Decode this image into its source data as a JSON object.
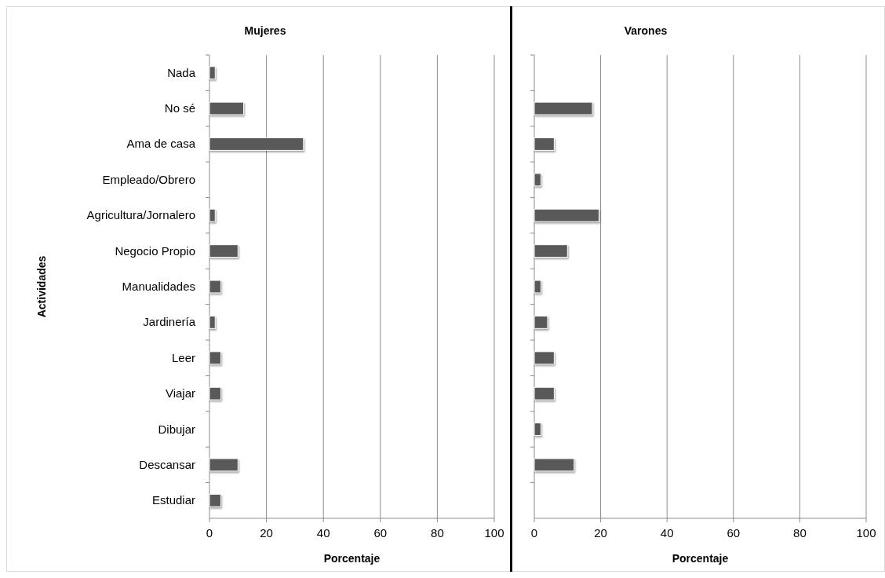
{
  "chart_data": [
    {
      "type": "bar",
      "orientation": "horizontal",
      "title": "Mujeres",
      "xlabel": "Porcentaje",
      "ylabel": "Actividades",
      "categories": [
        "Nada",
        "No sé",
        "Ama de casa",
        "Empleado/Obrero",
        "Agricultura/Jornalero",
        "Negocio Propio",
        "Manualidades",
        "Jardinería",
        "Leer",
        "Viajar",
        "Dibujar",
        "Descansar",
        "Estudiar"
      ],
      "values": [
        2,
        12,
        33,
        0,
        2,
        10,
        4,
        2,
        4,
        4,
        0,
        10,
        4
      ],
      "color": "#595959",
      "xlim": [
        0,
        100
      ],
      "xticks": [
        0,
        20,
        40,
        60,
        80,
        100
      ],
      "grid": "x"
    },
    {
      "type": "bar",
      "orientation": "horizontal",
      "title": "Varones",
      "xlabel": "Porcentaje",
      "categories": [
        null,
        null,
        null,
        null,
        null,
        null,
        null,
        null,
        null,
        null,
        null,
        null,
        null
      ],
      "values": [
        0,
        17.5,
        6,
        2,
        19.5,
        10,
        2,
        4,
        6,
        6,
        2,
        12,
        0
      ],
      "color": "#595959",
      "xlim": [
        0,
        100
      ],
      "xticks": [
        0,
        20,
        40,
        60,
        80,
        100
      ],
      "grid": "x"
    }
  ]
}
